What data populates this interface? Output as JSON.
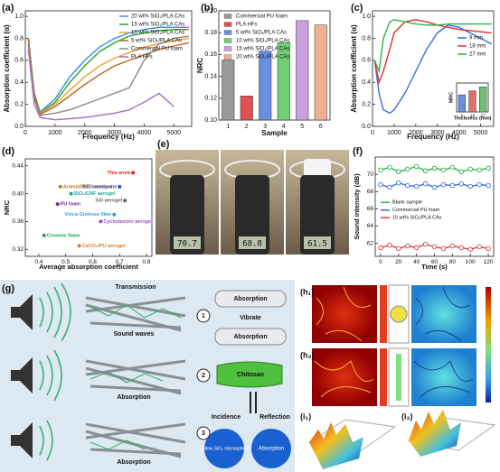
{
  "chart_data": [
    {
      "type": "line",
      "xlabel": "Frequency (Hz)",
      "ylabel": "Absorption coefficient (α)",
      "x": [
        100,
        300,
        500,
        1000,
        1500,
        2000,
        2500,
        3000,
        3500,
        4000,
        4500,
        5000,
        5500
      ],
      "xlim": [
        0,
        5600
      ],
      "xticks": [
        0,
        1000,
        2000,
        3000,
        4000,
        5000
      ],
      "ylim": [
        0,
        1.05
      ],
      "yticks": [
        {
          "value": 0,
          "label": "0.0"
        },
        0.2,
        0.4,
        0.6,
        0.8,
        {
          "value": 1,
          "label": "1.0"
        }
      ],
      "legend": "upper right",
      "series": [
        {
          "name": "20 wt% SiO₂/PLA CAs",
          "color": "#3a8ee6",
          "values": [
            0.8,
            0.3,
            0.13,
            0.25,
            0.45,
            0.6,
            0.72,
            0.8,
            0.85,
            0.88,
            0.9,
            0.9,
            0.9
          ]
        },
        {
          "name": "15 wt% SiO₂/PLA CAs",
          "color": "#2ca02c",
          "values": [
            0.8,
            0.3,
            0.12,
            0.22,
            0.4,
            0.55,
            0.68,
            0.76,
            0.82,
            0.85,
            0.87,
            0.88,
            0.88
          ]
        },
        {
          "name": "10 wt% SiO₂/PLA CAs",
          "color": "#f0a030",
          "values": [
            0.8,
            0.28,
            0.12,
            0.2,
            0.33,
            0.45,
            0.55,
            0.62,
            0.67,
            0.72,
            0.75,
            0.78,
            0.8
          ]
        },
        {
          "name": "5 wt% SiO₂/PLA CAs",
          "color": "#b5651d",
          "values": [
            0.8,
            0.28,
            0.11,
            0.18,
            0.28,
            0.38,
            0.47,
            0.55,
            0.6,
            0.65,
            0.7,
            0.73,
            0.76
          ]
        },
        {
          "name": "Commercial PU foam",
          "color": "#888888",
          "values": [
            0.75,
            0.25,
            0.1,
            0.12,
            0.15,
            0.2,
            0.25,
            0.3,
            0.35,
            0.6,
            0.75,
            0.8,
            0.82
          ]
        },
        {
          "name": "PLA HFs",
          "color": "#a070c0",
          "values": [
            0.7,
            0.2,
            0.08,
            0.06,
            0.07,
            0.08,
            0.1,
            0.12,
            0.15,
            0.22,
            0.3,
            0.18,
            null
          ]
        }
      ]
    },
    {
      "type": "bar",
      "xlabel": "Sample",
      "ylabel": "NRC",
      "categories": [
        "1",
        "2",
        "3",
        "4",
        "5",
        "6"
      ],
      "values": [
        0.155,
        0.122,
        0.163,
        0.171,
        0.191,
        0.187
      ],
      "colors": [
        "#9a9a9a",
        "#e05050",
        "#6a8fe0",
        "#70d070",
        "#c9a0e0",
        "#f0b090"
      ],
      "legend_labels": [
        "Commercial PU foam",
        "PLA HFs",
        "5 wt% SiO₂/PLA CAs",
        "10 wt% SiO₂/PLA CAs",
        "15 wt% SiO₂/PLA CAs",
        "20 wt% SiO₂/PLA CAs"
      ],
      "legend": "upper left",
      "ylim": [
        0.1,
        0.2
      ],
      "yticks": [
        {
          "value": 0.1,
          "label": "0.10"
        },
        {
          "value": 0.12,
          "label": "0.12"
        },
        {
          "value": 0.14,
          "label": "0.14"
        },
        {
          "value": 0.16,
          "label": "0.16"
        },
        {
          "value": 0.18,
          "label": "0.18"
        },
        {
          "value": 0.2,
          "label": "0.20"
        }
      ]
    },
    {
      "type": "line",
      "xlabel": "Frequency (Hz)",
      "ylabel": "Absorption coefficient (α)",
      "x": [
        100,
        300,
        500,
        800,
        1000,
        1500,
        2000,
        2500,
        3000,
        3500,
        4000,
        4500,
        5000,
        5500
      ],
      "xlim": [
        0,
        5600
      ],
      "xticks": [
        0,
        1000,
        2000,
        3000,
        4000,
        5000
      ],
      "ylim": [
        0,
        1.05
      ],
      "yticks": [
        {
          "value": 0,
          "label": "0.0"
        },
        0.2,
        0.4,
        0.6,
        0.8,
        {
          "value": 1,
          "label": "1.0"
        }
      ],
      "legend": "center right",
      "series": [
        {
          "name": "9 mm",
          "color": "#2f6fe0",
          "values": [
            0.6,
            0.3,
            0.15,
            0.12,
            0.15,
            0.3,
            0.5,
            0.7,
            0.85,
            0.92,
            0.9,
            0.85,
            0.8,
            0.75
          ]
        },
        {
          "name": "18 mm",
          "color": "#e03030",
          "values": [
            0.6,
            0.4,
            0.5,
            0.7,
            0.85,
            0.95,
            0.97,
            0.95,
            0.92,
            0.9,
            0.88,
            0.87,
            0.86,
            0.85
          ]
        },
        {
          "name": "27 mm",
          "color": "#30b050",
          "values": [
            0.6,
            0.5,
            0.8,
            0.95,
            0.97,
            0.95,
            0.93,
            0.92,
            0.92,
            0.93,
            0.93,
            0.93,
            0.93,
            0.93
          ]
        }
      ]
    },
    {
      "type": "bar",
      "xlabel": "Thickness (mm)",
      "ylabel": "NRC",
      "categories": [
        "9",
        "18",
        "27"
      ],
      "values": [
        0.13,
        0.16,
        0.19
      ],
      "colors": [
        "#6a8fe0",
        "#e07070",
        "#70c070"
      ],
      "ylim": [
        0,
        0.22
      ],
      "yticks": []
    },
    {
      "type": "scatter",
      "xlabel": "Average absorption coefficient",
      "ylabel": "NRC",
      "x": [
        0.75,
        0.48,
        0.7,
        0.52,
        0.72,
        0.47,
        0.68,
        0.63,
        0.42,
        0.55
      ],
      "values": [
        0.43,
        0.41,
        0.41,
        0.4,
        0.39,
        0.385,
        0.37,
        0.36,
        0.34,
        0.325
      ],
      "point_labels": [
        "This work",
        "Aramid/RGO aerogel",
        "GO membrane",
        "SiO₂/CNF aerogel",
        "GO aerogel",
        "PU foam",
        "Vinca Gloriosa fiber",
        "Cyclodextrin aerogel",
        "Ceramic foam",
        "CaCO₃/PU aerogel"
      ],
      "colors": [
        "#e02020",
        "#b08020",
        "#3050c0",
        "#20a0a0",
        "#606060",
        "#7030a0",
        "#30a0e0",
        "#a050c0",
        "#20a060",
        "#d08030"
      ],
      "xlim": [
        0.35,
        0.82
      ],
      "xticks": [
        0.4,
        0.5,
        0.6,
        0.7,
        0.8
      ],
      "ylim": [
        0.31,
        0.45
      ],
      "yticks": [
        0.32,
        0.36,
        {
          "value": 0.4,
          "label": "0.40"
        },
        0.44
      ]
    },
    {
      "type": "line",
      "markers": true,
      "xlabel": "Time (s)",
      "ylabel": "Sound intensity (dB)",
      "x": [
        0,
        10,
        20,
        30,
        40,
        50,
        60,
        70,
        80,
        90,
        100,
        110,
        120
      ],
      "xlim": [
        -6,
        126
      ],
      "xticks": [
        0,
        20,
        40,
        60,
        80,
        100,
        120
      ],
      "ylim": [
        60.5,
        72
      ],
      "yticks": [
        62,
        64,
        66,
        68,
        70
      ],
      "legend": "center left",
      "series": [
        {
          "name": "Blank sample",
          "color": "#30b050",
          "values": [
            70.5,
            70.8,
            70.3,
            70.6,
            70.9,
            70.4,
            70.7,
            70.5,
            70.8,
            70.3,
            70.6,
            70.5,
            70.7
          ]
        },
        {
          "name": "Commercial PU foam",
          "color": "#3a6fd0",
          "values": [
            68.8,
            68.5,
            69.0,
            68.7,
            68.6,
            68.9,
            68.5,
            68.8,
            68.7,
            68.9,
            68.6,
            68.8,
            68.7
          ]
        },
        {
          "name": "15 wt% SiO₂/PLA CAs",
          "color": "#e04040",
          "values": [
            61.5,
            61.8,
            61.4,
            61.7,
            61.5,
            61.9,
            61.6,
            61.4,
            61.7,
            61.5,
            61.3,
            61.6,
            61.4
          ]
        }
      ]
    }
  ],
  "figure": {
    "panel_labels": [
      "(a)",
      "(b)",
      "(c)",
      "(d)",
      "(e)",
      "(f)",
      "(g)",
      "(h₁)",
      "(h₂)",
      "(i₁)",
      "(i₂)"
    ],
    "e_readings": [
      "70.7",
      "68.8",
      "61.5"
    ],
    "g": {
      "transmission": "Transmission",
      "sound_waves": "Sound waves",
      "absorption": "Absorption",
      "vibrate": "Vibrate",
      "chitosan": "Chitosan",
      "incidence": "Incidence",
      "reflection": "Reflection",
      "microsphere": "Hollow SiO₂ microsphere",
      "steps": [
        "1",
        "2",
        "3"
      ]
    }
  }
}
